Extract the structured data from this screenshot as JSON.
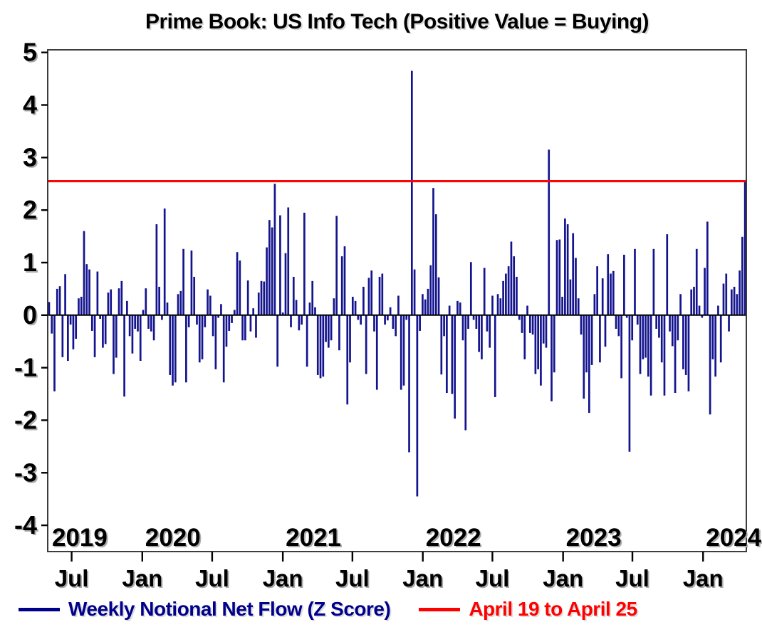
{
  "title": "Prime Book: US Info Tech (Positive Value = Buying)",
  "legend": [
    {
      "label": "Weekly Notional Net Flow (Z Score)",
      "color": "#00008B"
    },
    {
      "label": "April 19 to April 25",
      "color": "#FF0000"
    }
  ],
  "chart_data": {
    "type": "bar",
    "title": "Prime Book: US Info Tech (Positive Value = Buying)",
    "xlabel": "",
    "ylabel": "",
    "ylim": [
      -4.5,
      5.05
    ],
    "y_tick_labels": [
      "5",
      "4",
      "3",
      "2",
      "1",
      "0",
      "-1",
      "-2",
      "-3",
      "-4"
    ],
    "y_tick_values": [
      5,
      4,
      3,
      2,
      1,
      0,
      -1,
      -2,
      -3,
      -4
    ],
    "grid": false,
    "legend_position": "bottom",
    "bar_color": "#14148E",
    "zero_line": true,
    "reference_line": {
      "name": "April 19 to April 25",
      "value": 2.55,
      "color": "#FB0505"
    },
    "x_axis": {
      "unit": "week",
      "first_week_ending": "2019-05-03",
      "last_week": "April 19 to April 25, 2024",
      "interval_days": 7
    },
    "x_ticks": [
      {
        "label": "Jul",
        "week": 8.4
      },
      {
        "label": "Jan",
        "week": 34.7
      },
      {
        "label": "Jul",
        "week": 60.7
      },
      {
        "label": "Jan",
        "week": 87.0
      },
      {
        "label": "Jul",
        "week": 112.9
      },
      {
        "label": "Jan",
        "week": 139.1
      },
      {
        "label": "Jul",
        "week": 165.0
      },
      {
        "label": "Jan",
        "week": 191.3
      },
      {
        "label": "Jul",
        "week": 217.1
      },
      {
        "label": "Jan",
        "week": 243.4
      }
    ],
    "year_labels": [
      {
        "label": "2019",
        "week": null
      },
      {
        "label": "2020",
        "week": 34.7
      },
      {
        "label": "2021",
        "week": 87.0
      },
      {
        "label": "2022",
        "week": 139.1
      },
      {
        "label": "2023",
        "week": 191.3
      },
      {
        "label": "2024",
        "week": 243.4
      }
    ],
    "series": [
      {
        "name": "Weekly Notional Net Flow (Z Score)",
        "color": "#14148E",
        "values": [
          0.25,
          -0.35,
          -1.45,
          0.5,
          0.55,
          -0.8,
          0.78,
          -0.87,
          -0.18,
          -0.65,
          -0.45,
          0.32,
          0.35,
          1.6,
          0.97,
          0.87,
          -0.3,
          -0.8,
          0.83,
          -0.07,
          -0.62,
          -0.55,
          0.43,
          0.49,
          -1.12,
          -0.81,
          0.51,
          0.65,
          -1.55,
          0.27,
          -0.4,
          -0.73,
          -0.26,
          -0.31,
          -0.87,
          0.1,
          0.51,
          -0.26,
          -0.31,
          -0.48,
          1.73,
          0.54,
          -0.09,
          2.03,
          0.24,
          -1.14,
          -1.34,
          -1.28,
          0.4,
          0.46,
          1.26,
          -1.28,
          -0.23,
          1.23,
          0.73,
          -0.18,
          -0.9,
          -0.84,
          -0.23,
          0.49,
          0.37,
          -0.4,
          -1.03,
          -0.05,
          0.21,
          -1.28,
          -0.6,
          -0.3,
          -0.15,
          0.1,
          1.2,
          1.04,
          -0.48,
          -0.48,
          0.66,
          -0.31,
          0.13,
          -0.43,
          0.43,
          0.65,
          0.64,
          1.29,
          1.81,
          1.67,
          2.5,
          -0.98,
          1.9,
          0.05,
          1.18,
          2.05,
          -0.23,
          0.73,
          0.29,
          -0.29,
          -0.18,
          1.95,
          -0.98,
          0.24,
          0.65,
          0.15,
          -1.14,
          -1.2,
          -1.17,
          -0.51,
          -0.62,
          -0.48,
          0.32,
          1.89,
          -0.67,
          1.12,
          1.31,
          -1.7,
          -0.9,
          0.35,
          0.27,
          -0.09,
          -0.18,
          0.54,
          -1.12,
          0.71,
          0.85,
          -0.31,
          -1.42,
          0.73,
          0.79,
          -0.18,
          -0.1,
          0.15,
          -0.26,
          -0.4,
          0.37,
          -1.42,
          -1.34,
          -0.09,
          -2.61,
          4.65,
          0.87,
          -3.45,
          -0.3,
          0.4,
          0.3,
          0.5,
          0.95,
          2.42,
          1.92,
          0.72,
          -1.13,
          -0.4,
          -1.48,
          0.18,
          -1.5,
          -1.97,
          0.27,
          0.24,
          -0.48,
          -2.19,
          -0.26,
          1.01,
          -0.09,
          -0.26,
          -0.7,
          -0.84,
          0.9,
          -0.31,
          -0.62,
          0.37,
          -1.56,
          0.4,
          0.32,
          0.65,
          0.79,
          0.93,
          1.4,
          1.12,
          0.73,
          -0.09,
          -0.34,
          -0.84,
          0.18,
          -0.34,
          -0.37,
          -1.12,
          -1.03,
          -1.34,
          -0.54,
          -0.62,
          3.15,
          -1.64,
          -1.09,
          1.43,
          1.44,
          0.35,
          1.84,
          1.73,
          0.68,
          1.56,
          1.09,
          0.32,
          -0.37,
          -1.59,
          -1.09,
          -1.86,
          -0.95,
          0.4,
          0.93,
          -0.9,
          0.7,
          -0.6,
          1.16,
          0.79,
          0.84,
          -0.26,
          -0.4,
          -1.2,
          1.15,
          -0.05,
          -2.6,
          -0.48,
          1.26,
          -0.18,
          -1.12,
          -0.84,
          -0.81,
          -1.17,
          -1.53,
          1.26,
          -0.26,
          -0.43,
          -0.9,
          -1.53,
          1.54,
          -0.31,
          -0.59,
          -1.48,
          -0.48,
          0.4,
          -1.03,
          -1.14,
          -1.45,
          0.49,
          0.54,
          1.26,
          0.18,
          -0.05,
          0.9,
          1.78,
          -1.89,
          -0.84,
          -1.17,
          0.18,
          -0.9,
          0.6,
          0.79,
          -0.31,
          0.49,
          0.54,
          0.4,
          0.85,
          1.49,
          2.55
        ]
      }
    ]
  }
}
